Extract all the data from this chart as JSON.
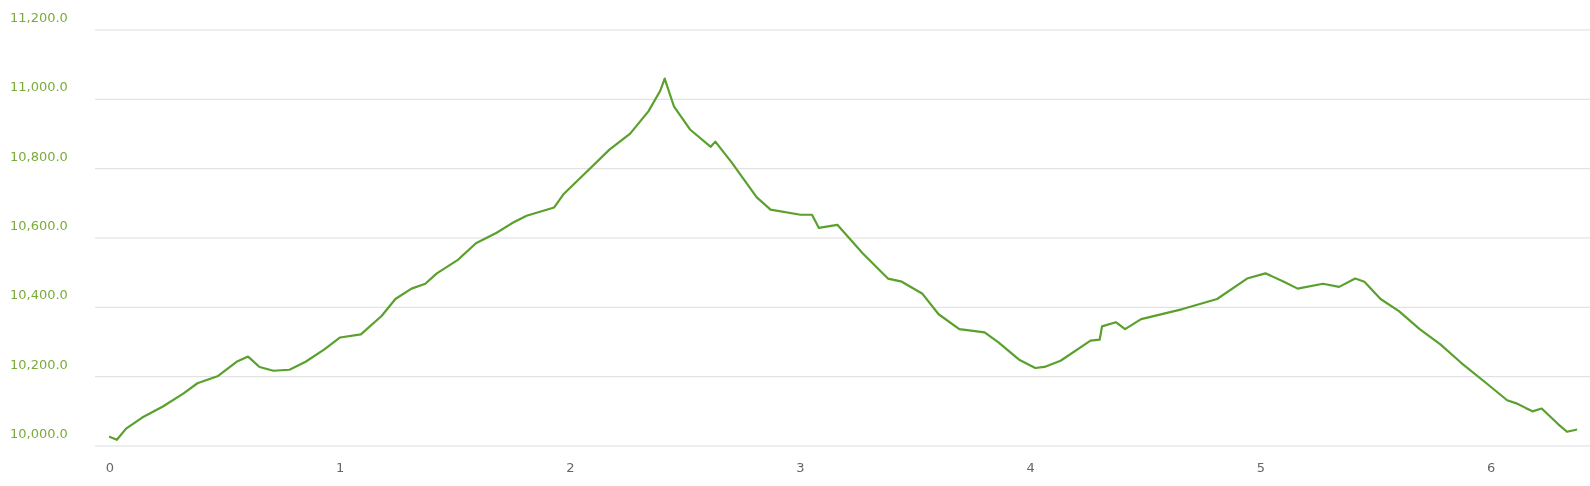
{
  "chart_data": {
    "type": "line",
    "xlim": [
      -0.065,
      6.43
    ],
    "xticks": [
      0,
      1,
      2,
      3,
      4,
      5,
      6
    ],
    "ylim": [
      10000,
      11200
    ],
    "yticks": [
      {
        "value": 10000,
        "label": "10,000.0"
      },
      {
        "value": 10200,
        "label": "10,200.0"
      },
      {
        "value": 10400,
        "label": "10,400.0"
      },
      {
        "value": 10600,
        "label": "10,600.0"
      },
      {
        "value": 10800,
        "label": "10,800.0"
      },
      {
        "value": 11000,
        "label": "11,000.0"
      },
      {
        "value": 11200,
        "label": "11,200.0"
      }
    ],
    "grid": "y",
    "marker": "none",
    "line_style": "solid",
    "x": [
      0,
      0.03,
      0.07,
      0.14,
      0.23,
      0.32,
      0.38,
      0.47,
      0.55,
      0.6,
      0.65,
      0.71,
      0.78,
      0.85,
      0.93,
      1.0,
      1.09,
      1.18,
      1.24,
      1.31,
      1.37,
      1.42,
      1.51,
      1.59,
      1.68,
      1.75,
      1.81,
      1.93,
      1.97,
      2.06,
      2.17,
      2.26,
      2.34,
      2.39,
      2.41,
      2.45,
      2.52,
      2.61,
      2.63,
      2.7,
      2.81,
      2.87,
      3.0,
      3.05,
      3.08,
      3.16,
      3.27,
      3.38,
      3.44,
      3.53,
      3.6,
      3.69,
      3.8,
      3.86,
      3.95,
      4.02,
      4.06,
      4.13,
      4.26,
      4.3,
      4.31,
      4.37,
      4.41,
      4.48,
      4.66,
      4.81,
      4.94,
      5.02,
      5.1,
      5.16,
      5.27,
      5.34,
      5.41,
      5.45,
      5.52,
      5.6,
      5.69,
      5.78,
      5.87,
      5.98,
      6.07,
      6.11,
      6.18,
      6.22,
      6.29,
      6.33,
      6.37
    ],
    "series": [
      {
        "color": "#5aa02c",
        "values": [
          10026,
          10018,
          10050,
          10082,
          10114,
          10152,
          10181,
          10202,
          10243,
          10258,
          10228,
          10217,
          10220,
          10243,
          10278,
          10313,
          10322,
          10375,
          10424,
          10454,
          10468,
          10498,
          10536,
          10585,
          10615,
          10644,
          10664,
          10688,
          10726,
          10784,
          10855,
          10901,
          10966,
          11024,
          11060,
          10980,
          10913,
          10863,
          10878,
          10819,
          10717,
          10682,
          10667,
          10667,
          10629,
          10638,
          10556,
          10483,
          10474,
          10439,
          10380,
          10337,
          10328,
          10299,
          10249,
          10225,
          10228,
          10246,
          10304,
          10307,
          10345,
          10357,
          10337,
          10366,
          10395,
          10424,
          10483,
          10498,
          10474,
          10454,
          10468,
          10459,
          10483,
          10474,
          10424,
          10389,
          10337,
          10293,
          10240,
          10181,
          10132,
          10123,
          10100,
          10108,
          10064,
          10041,
          10047
        ]
      }
    ]
  }
}
